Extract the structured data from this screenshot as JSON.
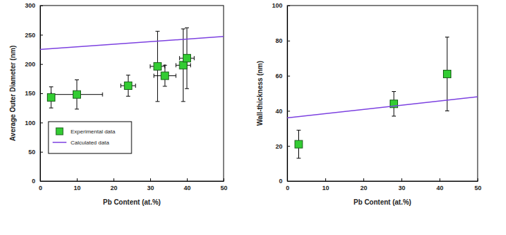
{
  "chart_data": [
    {
      "type": "scatter",
      "x_label": "Pb Content (at.%)",
      "y_label": "Average Outer Diameter (nm)",
      "xlim": [
        0,
        50
      ],
      "xticks": [
        0,
        10,
        20,
        30,
        40,
        50
      ],
      "ylim": [
        0,
        300
      ],
      "yticks": [
        0,
        50,
        100,
        150,
        200,
        250,
        300
      ],
      "legend": "lower left",
      "series": [
        {
          "name": "Experimental data",
          "type": "scatter",
          "marker": "square",
          "color": "#33cc33",
          "x": [
            3,
            10,
            24,
            32,
            34,
            39,
            40
          ],
          "values": [
            143,
            148,
            163,
            196,
            180,
            198,
            210
          ],
          "x_error": [
            0,
            7,
            2,
            2,
            3,
            2,
            2
          ],
          "y_error": [
            18,
            25,
            18,
            60,
            18,
            62,
            52
          ]
        },
        {
          "name": "Calculated data",
          "type": "line",
          "line_style": "solid",
          "color": "#7b3fe0",
          "x": [
            0,
            50
          ],
          "values": [
            225,
            247
          ]
        }
      ]
    },
    {
      "type": "scatter",
      "x_label": "Pb Content (at.%)",
      "y_label": "Wall-thickness (nm)",
      "xlim": [
        0,
        50
      ],
      "xticks": [
        0,
        10,
        20,
        30,
        40,
        50
      ],
      "ylim": [
        0,
        100
      ],
      "yticks": [
        0,
        20,
        40,
        60,
        80,
        100
      ],
      "series": [
        {
          "type": "scatter",
          "marker": "square",
          "color": "#33cc33",
          "x": [
            3,
            28,
            42
          ],
          "values": [
            21,
            44,
            61
          ],
          "y_error": [
            8,
            7,
            21
          ]
        },
        {
          "type": "line",
          "line_style": "solid",
          "color": "#7b3fe0",
          "x": [
            0,
            50
          ],
          "values": [
            36,
            48
          ]
        }
      ]
    }
  ]
}
